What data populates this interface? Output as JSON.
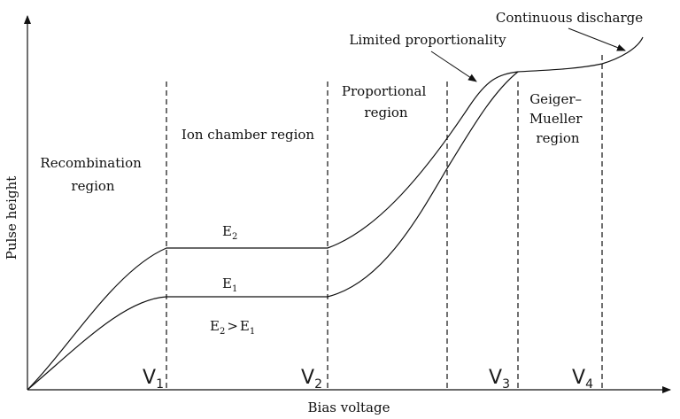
{
  "axes": {
    "x_label": "Bias voltage",
    "y_label": "Pulse height"
  },
  "regions": {
    "recombination": [
      "Recombination",
      "region"
    ],
    "ion_chamber": "Ion chamber region",
    "proportional": [
      "Proportional",
      "region"
    ],
    "geiger": [
      "Geiger–",
      "Mueller",
      "region"
    ]
  },
  "annotations": {
    "limited_proportionality": "Limited proportionality",
    "continuous_discharge": "Continuous discharge"
  },
  "curves": {
    "upper": {
      "letter": "E",
      "index": "2"
    },
    "lower": {
      "letter": "E",
      "index": "1"
    }
  },
  "relation": {
    "left_letter": "E",
    "left_index": "2",
    "operator": ">",
    "right_letter": "E",
    "right_index": "1"
  },
  "voltages": [
    {
      "letter": "V",
      "index": "1"
    },
    {
      "letter": "V",
      "index": "2"
    },
    {
      "letter": "V",
      "index": "3"
    },
    {
      "letter": "V",
      "index": "4"
    }
  ]
}
